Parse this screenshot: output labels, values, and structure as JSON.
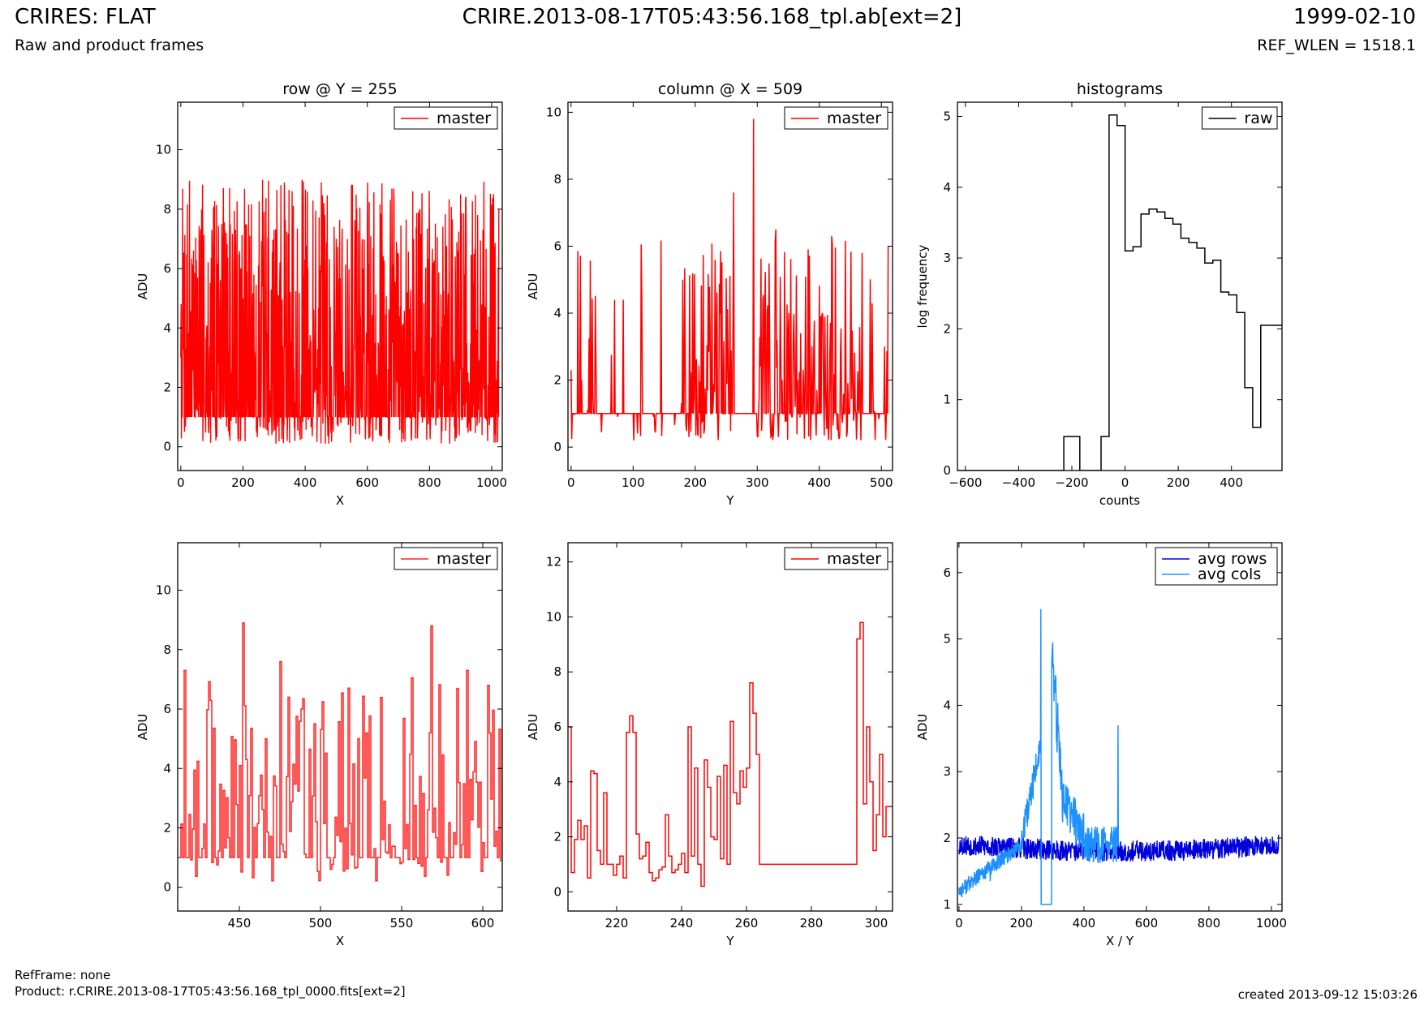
{
  "header": {
    "title": "CRIRES: FLAT",
    "subtitle": "Raw and product frames",
    "file": "CRIRE.2013-08-17T05:43:56.168_tpl.ab[ext=2]",
    "date": "1999-02-10",
    "ref_wlen": "REF_WLEN = 1518.1"
  },
  "footer": {
    "ref_frame": "RefFrame: none",
    "product": "Product: r.CRIRE.2013-08-17T05:43:56.168_tpl_0000.fits[ext=2]",
    "created": "created 2013-09-12 15:03:26"
  },
  "colors": {
    "red": "#ff0000",
    "black": "#000000",
    "blue": "#0000dd",
    "lightblue": "#1e90ff"
  },
  "chart_data": [
    {
      "id": "row",
      "type": "line",
      "title": "row @ Y = 255",
      "xlabel": "X",
      "ylabel": "ADU",
      "xlim": [
        -10,
        1034
      ],
      "ylim": [
        -0.8,
        11.6
      ],
      "xticks": [
        0,
        200,
        400,
        600,
        800,
        1000
      ],
      "yticks": [
        0,
        2,
        4,
        6,
        8,
        10
      ],
      "legend": "top-right",
      "series": [
        {
          "name": "master",
          "color": "#ff0000",
          "style": "noise",
          "n": 1024,
          "x0": 0,
          "x1": 1023,
          "base": 1,
          "low": 0.1,
          "high": 9.0,
          "x": [
            0,
            100,
            200,
            300,
            452,
            500,
            600,
            700,
            800,
            900,
            1000,
            1023
          ],
          "y": [
            3,
            7.3,
            5,
            7.3,
            8.9,
            7,
            7.5,
            6.5,
            7.5,
            8.5,
            5,
            8
          ]
        }
      ]
    },
    {
      "id": "col",
      "type": "line",
      "title": "column @ X = 509",
      "xlabel": "Y",
      "ylabel": "ADU",
      "xlim": [
        -5,
        518
      ],
      "ylim": [
        -0.7,
        10.3
      ],
      "xticks": [
        0,
        100,
        200,
        300,
        400,
        500
      ],
      "yticks": [
        0,
        2,
        4,
        6,
        8,
        10
      ],
      "legend": "top-right",
      "series": [
        {
          "name": "master",
          "color": "#ff0000",
          "style": "column",
          "n": 512,
          "x": [
            0,
            3,
            40,
            100,
            180,
            262,
            294,
            330,
            420,
            450,
            505,
            511
          ],
          "y": [
            2.3,
            1.0,
            2.8,
            1.0,
            5.0,
            7.6,
            9.8,
            6.5,
            6.3,
            2.9,
            3.0,
            6.0
          ]
        }
      ]
    },
    {
      "id": "hist",
      "type": "step",
      "title": "histograms",
      "xlabel": "counts",
      "ylabel": "log frequency",
      "xlim": [
        -630,
        590
      ],
      "ylim": [
        0,
        5.2
      ],
      "xticks": [
        -600,
        -400,
        -200,
        0,
        200,
        400
      ],
      "yticks": [
        0,
        1,
        2,
        3,
        4,
        5
      ],
      "legend": "top-right",
      "series": [
        {
          "name": "raw",
          "color": "#000000",
          "edges": [
            -630,
            -230,
            -170,
            -90,
            -60,
            -30,
            0,
            30,
            60,
            90,
            120,
            150,
            180,
            210,
            240,
            270,
            300,
            330,
            360,
            390,
            420,
            450,
            480,
            510,
            560,
            590
          ],
          "values": [
            0,
            0.48,
            0,
            0.48,
            5.02,
            4.87,
            3.1,
            3.16,
            3.62,
            3.69,
            3.65,
            3.56,
            3.48,
            3.28,
            3.22,
            3.14,
            2.93,
            2.97,
            2.52,
            2.48,
            2.23,
            1.17,
            0.61,
            2.05,
            2.05
          ]
        }
      ]
    },
    {
      "id": "row-zoom",
      "type": "line",
      "title": "",
      "xlabel": "X",
      "ylabel": "ADU",
      "xlim": [
        412,
        612
      ],
      "ylim": [
        -0.8,
        11.6
      ],
      "xticks": [
        450,
        500,
        550,
        600
      ],
      "yticks": [
        0,
        2,
        4,
        6,
        8,
        10
      ],
      "legend": "top-right",
      "series": [
        {
          "name": "master",
          "color": "#ff2222",
          "style": "zoom",
          "n": 200,
          "x0": 412,
          "x1": 611,
          "base": 1,
          "low": 0.2,
          "high": 7.2,
          "x": [
            416,
            452,
            475,
            480,
            568,
            590,
            603
          ],
          "y": [
            7.3,
            8.9,
            7.6,
            6.4,
            8.8,
            7.3,
            6.8
          ]
        }
      ]
    },
    {
      "id": "col-zoom",
      "type": "step",
      "title": "",
      "xlabel": "Y",
      "ylabel": "ADU",
      "xlim": [
        205,
        305
      ],
      "ylim": [
        -0.7,
        12.7
      ],
      "xticks": [
        220,
        240,
        260,
        280,
        300
      ],
      "yticks": [
        0,
        2,
        4,
        6,
        8,
        10,
        12
      ],
      "legend": "top-right",
      "series": [
        {
          "name": "master",
          "color": "#ff0000",
          "x": [
            205,
            206,
            207,
            208,
            209,
            210,
            211,
            212,
            213,
            214,
            215,
            216,
            217,
            218,
            219,
            220,
            221,
            222,
            223,
            224,
            225,
            226,
            227,
            228,
            229,
            230,
            231,
            232,
            233,
            234,
            235,
            236,
            237,
            238,
            239,
            240,
            241,
            242,
            243,
            244,
            245,
            246,
            247,
            248,
            249,
            250,
            251,
            252,
            253,
            254,
            255,
            256,
            257,
            258,
            259,
            260,
            261,
            262,
            263,
            264,
            265,
            266,
            267,
            268,
            269,
            270,
            271,
            272,
            273,
            274,
            275,
            276,
            277,
            278,
            279,
            280,
            281,
            282,
            283,
            284,
            285,
            286,
            287,
            288,
            289,
            290,
            291,
            292,
            293,
            294,
            295,
            296,
            297,
            298,
            299,
            300,
            301,
            302,
            303,
            304
          ],
          "y": [
            6.0,
            0.7,
            1.9,
            2.6,
            1.9,
            2.4,
            0.5,
            4.4,
            4.3,
            1.5,
            1.0,
            3.6,
            1.0,
            1.0,
            0.6,
            1.0,
            1.3,
            0.5,
            5.8,
            6.4,
            5.8,
            2.1,
            1.2,
            1.3,
            1.8,
            0.7,
            0.4,
            0.5,
            0.8,
            0.9,
            2.8,
            1.3,
            0.7,
            0.8,
            1.0,
            1.4,
            0.7,
            6.0,
            1.3,
            4.5,
            1.0,
            0.2,
            4.8,
            3.8,
            2.0,
            1.9,
            4.2,
            1.2,
            4.6,
            1.0,
            6.2,
            3.6,
            3.2,
            4.4,
            3.8,
            4.5,
            7.6,
            6.5,
            5.0,
            1.0,
            1.0,
            1.0,
            1.0,
            1.0,
            1.0,
            1.0,
            1.0,
            1.0,
            1.0,
            1.0,
            1.0,
            1.0,
            1.0,
            1.0,
            1.0,
            1.0,
            1.0,
            1.0,
            1.0,
            1.0,
            1.0,
            1.0,
            1.0,
            1.0,
            1.0,
            1.0,
            1.0,
            1.0,
            1.0,
            9.2,
            9.8,
            3.2,
            6.0,
            4.0,
            1.5,
            2.8,
            5.0,
            2.0,
            3.1,
            3.1
          ]
        }
      ]
    },
    {
      "id": "avg",
      "type": "line",
      "title": "",
      "xlabel": "X / Y",
      "ylabel": "ADU",
      "xlim": [
        -5,
        1034
      ],
      "ylim": [
        0.9,
        6.45
      ],
      "xticks": [
        0,
        200,
        400,
        600,
        800,
        1000
      ],
      "yticks": [
        1,
        2,
        3,
        4,
        5,
        6
      ],
      "legend": "top-right",
      "series": [
        {
          "name": "avg rows",
          "color": "#0000dd",
          "style": "avgrows",
          "n": 1024,
          "x": [
            0,
            200,
            400,
            600,
            800,
            1000,
            1023
          ],
          "y": [
            1.9,
            1.85,
            1.8,
            1.75,
            1.85,
            1.95,
            1.95
          ]
        },
        {
          "name": "avg cols",
          "color": "#1e90ff",
          "style": "avgcols",
          "n": 512,
          "x": [
            0,
            100,
            200,
            259,
            262,
            270,
            296,
            300,
            350,
            400,
            500,
            509,
            511
          ],
          "y": [
            1.25,
            1.35,
            1.9,
            3.3,
            5.45,
            1.0,
            1.0,
            4.95,
            2.5,
            1.9,
            1.9,
            3.7,
            1.9
          ]
        }
      ]
    }
  ]
}
